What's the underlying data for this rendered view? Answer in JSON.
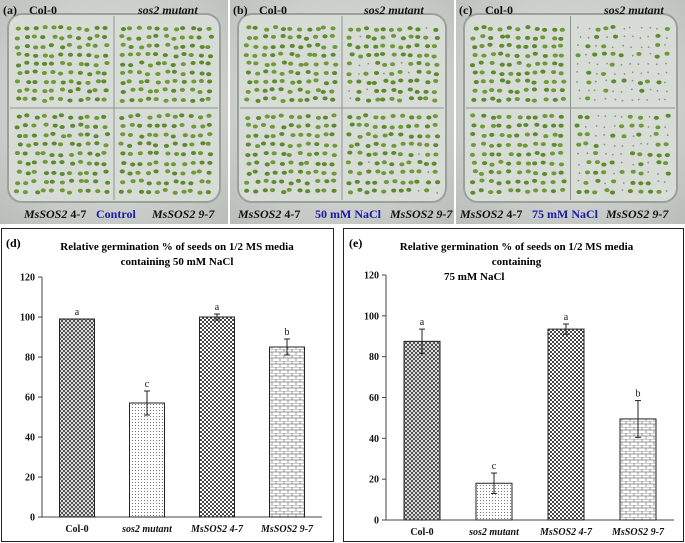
{
  "photos": [
    {
      "panel": "(a)",
      "top_left": "Col-0",
      "top_right": "sos2 mutant",
      "bottom_left_gene": "MsSOS2",
      "bottom_left_line": "4-7",
      "center": "Control",
      "bottom_right_gene": "MsSOS2",
      "bottom_right_line": "9-7"
    },
    {
      "panel": "(b)",
      "top_left": "Col-0",
      "top_right": "sos2 mutant",
      "bottom_left_gene": "MsSOS2",
      "bottom_left_line": "4-7",
      "center": "50 mM NaCl",
      "bottom_right_gene": "MsSOS2",
      "bottom_right_line": "9-7"
    },
    {
      "panel": "(c)",
      "top_left": "Col-0",
      "top_right": "sos2 mutant",
      "bottom_left_gene": "MsSOS2",
      "bottom_left_line": "4-7",
      "center": "75 mM NaCl",
      "bottom_right_gene": "MsSOS2",
      "bottom_right_line": "9-7"
    }
  ],
  "colors": {
    "text_blue": "#1a1aa6",
    "bar_stroke": "#222222",
    "axis": "#444444"
  },
  "chart_data": [
    {
      "panel": "(d)",
      "type": "bar",
      "title_line1": "Relative  germination % of seeds on 1/2 MS media",
      "title_line2": "containing  50 mM NaCl",
      "categories": [
        "Col-0",
        "sos2 mutant",
        "MsSOS2 4-7",
        "MsSOS2 9-7"
      ],
      "values": [
        99,
        57,
        100,
        85
      ],
      "errors": [
        0,
        6,
        1.5,
        4
      ],
      "letters": [
        "a",
        "c",
        "a",
        "b"
      ],
      "patterns": [
        "cross",
        "dots",
        "checker",
        "brick"
      ],
      "ylim": [
        0,
        120
      ],
      "yticks": [
        "0",
        "20",
        "40",
        "60",
        "80",
        "100",
        "120"
      ]
    },
    {
      "panel": "(e)",
      "type": "bar",
      "title_line1": "Relative germination % of seeds on 1/2 MS media containing",
      "title_line2": "75 mM NaCl",
      "categories": [
        "Col-0",
        "sos2 mutant",
        "MsSOS2 4-7",
        "MsSOS2 9-7"
      ],
      "values": [
        87.5,
        18,
        93.5,
        49.5
      ],
      "errors": [
        6,
        5,
        2.5,
        9
      ],
      "letters": [
        "a",
        "c",
        "a",
        "b"
      ],
      "patterns": [
        "cross",
        "dots",
        "checker",
        "brick"
      ],
      "ylim": [
        0,
        120
      ],
      "yticks": [
        "0",
        "20",
        "40",
        "60",
        "80",
        "100",
        "120"
      ]
    }
  ]
}
